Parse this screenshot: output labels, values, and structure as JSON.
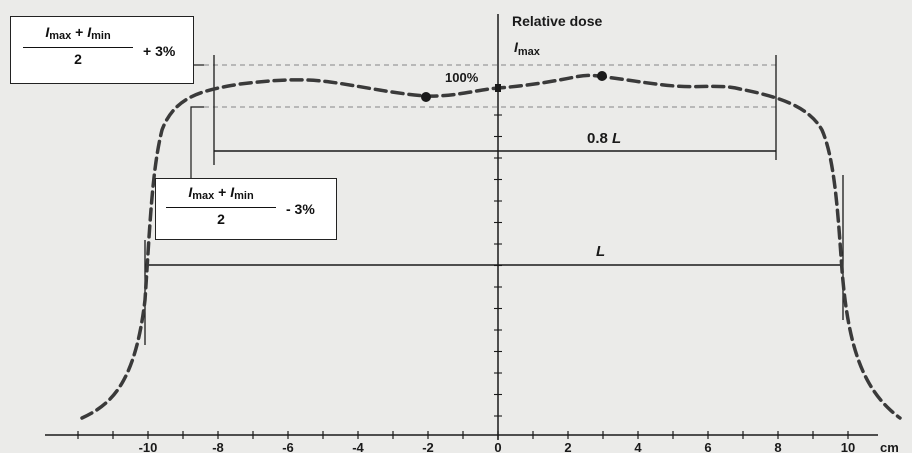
{
  "axis": {
    "y_title": "Relative dose",
    "y_sub_label": "I",
    "y_sub_label_sub": "max",
    "percent_label": "100%",
    "unit": "cm",
    "ticks": [
      "-10",
      "-8",
      "-6",
      "-4",
      "-2",
      "0",
      "2",
      "4",
      "6",
      "8",
      "10"
    ]
  },
  "labels": {
    "width_80": "0.8 L",
    "width_80_num": "0.8",
    "width_80_var": "L",
    "width_full": "L"
  },
  "upper_box": {
    "num_a": "I",
    "num_a_sub": "max",
    "plus": " + ",
    "num_b": "I",
    "num_b_sub": "min",
    "den": "2",
    "suffix": "+ 3%"
  },
  "lower_box": {
    "num_a": "I",
    "num_a_sub": "max",
    "plus": " + ",
    "num_b": "I",
    "num_b_sub": "min",
    "den": "2",
    "suffix": "- 3%"
  },
  "colors": {
    "profile": "#3a3a3a",
    "axis": "#1a1a1a",
    "reference_dashes": "#9a9a9a",
    "background": "#ebebe9"
  }
}
